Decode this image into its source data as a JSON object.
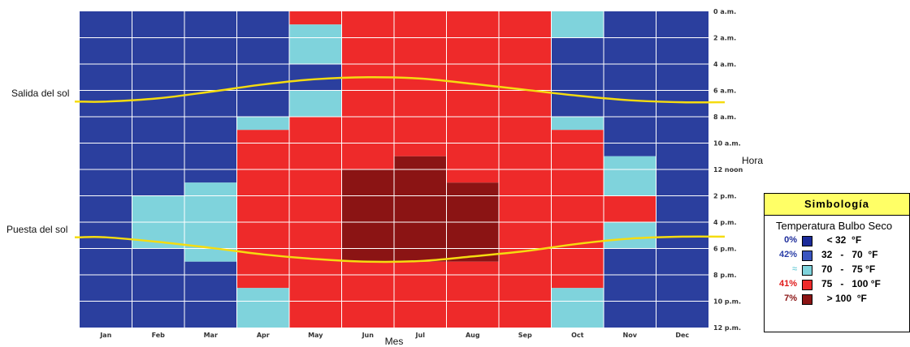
{
  "chart_data": {
    "type": "heatmap",
    "x_categories": [
      "Jan",
      "Feb",
      "Mar",
      "Apr",
      "May",
      "Jun",
      "Jul",
      "Aug",
      "Sep",
      "Oct",
      "Nov",
      "Dec"
    ],
    "hour_tick_labels": [
      "0 a.m.",
      "2 a.m.",
      "4 a.m.",
      "6 a.m.",
      "8 a.m.",
      "10 a.m.",
      "12 noon",
      "2 p.m.",
      "4 p.m.",
      "6 p.m.",
      "8 p.m.",
      "10 p.m.",
      "12 p.m."
    ],
    "xlabel": "Mes",
    "ylabel": "Hora",
    "ylim_hours": [
      0,
      24
    ],
    "grid": true,
    "bin_colors": {
      "1": "#2b3f9e",
      "2": "#7fd3dc",
      "3": "#ee2a2a",
      "4": "#8b1414"
    },
    "temperature_bins_by_month_hour": [
      [
        1,
        1,
        1,
        1,
        1,
        1,
        1,
        1,
        1,
        1,
        1,
        1,
        1,
        1,
        1,
        1,
        1,
        1,
        1,
        1,
        1,
        1,
        1,
        1
      ],
      [
        1,
        1,
        1,
        1,
        1,
        1,
        1,
        1,
        1,
        1,
        1,
        1,
        1,
        1,
        2,
        2,
        2,
        2,
        1,
        1,
        1,
        1,
        1,
        1
      ],
      [
        1,
        1,
        1,
        1,
        1,
        1,
        1,
        1,
        1,
        1,
        1,
        1,
        1,
        2,
        2,
        2,
        2,
        2,
        2,
        1,
        1,
        1,
        1,
        1
      ],
      [
        1,
        1,
        1,
        1,
        1,
        1,
        1,
        1,
        2,
        3,
        3,
        3,
        3,
        3,
        3,
        3,
        3,
        3,
        3,
        3,
        3,
        2,
        2,
        2
      ],
      [
        3,
        2,
        2,
        2,
        1,
        1,
        2,
        2,
        3,
        3,
        3,
        3,
        3,
        3,
        3,
        3,
        3,
        3,
        3,
        3,
        3,
        3,
        3,
        3
      ],
      [
        3,
        3,
        3,
        3,
        3,
        3,
        3,
        3,
        3,
        3,
        3,
        3,
        4,
        4,
        4,
        4,
        4,
        4,
        4,
        3,
        3,
        3,
        3,
        3
      ],
      [
        3,
        3,
        3,
        3,
        3,
        3,
        3,
        3,
        3,
        3,
        3,
        4,
        4,
        4,
        4,
        4,
        4,
        4,
        4,
        3,
        3,
        3,
        3,
        3
      ],
      [
        3,
        3,
        3,
        3,
        3,
        3,
        3,
        3,
        3,
        3,
        3,
        3,
        3,
        4,
        4,
        4,
        4,
        4,
        4,
        3,
        3,
        3,
        3,
        3
      ],
      [
        3,
        3,
        3,
        3,
        3,
        3,
        3,
        3,
        3,
        3,
        3,
        3,
        3,
        3,
        3,
        3,
        3,
        3,
        3,
        3,
        3,
        3,
        3,
        3
      ],
      [
        2,
        2,
        1,
        1,
        1,
        1,
        1,
        1,
        2,
        3,
        3,
        3,
        3,
        3,
        3,
        3,
        3,
        3,
        3,
        3,
        3,
        2,
        2,
        2
      ],
      [
        1,
        1,
        1,
        1,
        1,
        1,
        1,
        1,
        1,
        1,
        1,
        2,
        2,
        2,
        3,
        3,
        2,
        2,
        1,
        1,
        1,
        1,
        1,
        1
      ],
      [
        1,
        1,
        1,
        1,
        1,
        1,
        1,
        1,
        1,
        1,
        1,
        1,
        1,
        1,
        1,
        1,
        1,
        1,
        1,
        1,
        1,
        1,
        1,
        1
      ]
    ],
    "series": [
      {
        "name": "Salida del sol",
        "values_hours": [
          6.85,
          6.6,
          6.1,
          5.55,
          5.15,
          5.0,
          5.1,
          5.5,
          5.95,
          6.4,
          6.75,
          6.9
        ],
        "color": "#f5dc10"
      },
      {
        "name": "Puesta del sol",
        "values_hours": [
          17.15,
          17.5,
          17.95,
          18.45,
          18.8,
          19.0,
          18.95,
          18.6,
          18.2,
          17.65,
          17.25,
          17.1
        ],
        "color": "#f5dc10"
      }
    ]
  },
  "legend": {
    "title": "Simbología",
    "subtitle": "Temperatura Bulbo Seco",
    "rows": [
      {
        "pct": "0%",
        "pct_color": "#1c2b9a",
        "swatch": "#1c2b9a",
        "range": "  < 32  °F"
      },
      {
        "pct": "42%",
        "pct_color": "#2b3fa8",
        "swatch": "#3a55c0",
        "range": "32   -   70  °F"
      },
      {
        "pct": "",
        "pct_color": "#7fd3dc",
        "swatch": "#7fd3dc",
        "range": "70   -   75 °F"
      },
      {
        "pct": "41%",
        "pct_color": "#e01818",
        "swatch": "#ee2a2a",
        "range": "75   -   100 °F"
      },
      {
        "pct": "7%",
        "pct_color": "#8b1414",
        "swatch": "#8b1414",
        "range": "  > 100  °F"
      }
    ]
  }
}
